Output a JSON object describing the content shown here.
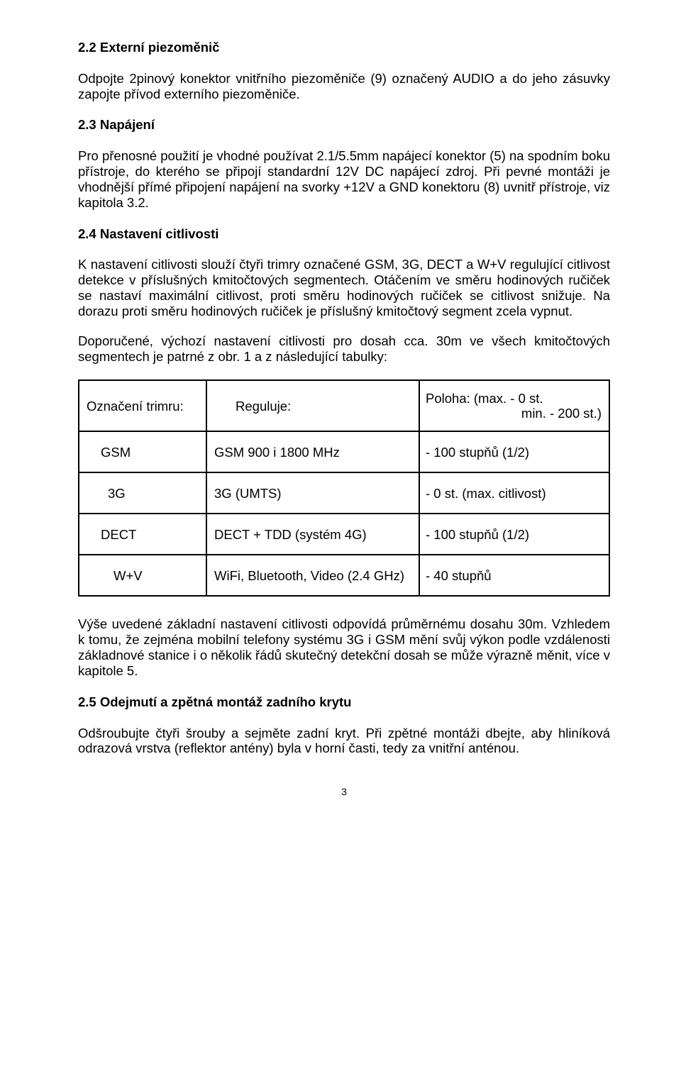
{
  "h22": "2.2 Externí piezoměnič",
  "p22": "Odpojte 2pinový konektor vnitřního piezoměniče (9) označený AUDIO a do jeho zásuvky zapojte přívod externího piezoměniče.",
  "h23": "2.3 Napájení",
  "p23": "Pro přenosné použití je vhodné používat 2.1/5.5mm napájecí konektor (5) na spodním boku přístroje, do kterého se připojí standardní 12V DC napájecí zdroj. Při pevné montáži je vhodnější přímé připojení napájení na svorky +12V a GND konektoru (8) uvnitř přístroje, viz kapitola 3.2.",
  "h24": "2.4 Nastavení citlivosti",
  "p24a": "K nastavení citlivosti slouží čtyři trimry označené GSM, 3G, DECT a W+V regulující citlivost detekce v příslušných kmitočtových segmentech.   Otáčením ve směru hodinových ručiček se nastaví maximální citlivost, proti směru hodinových ručiček se citlivost snižuje. Na dorazu proti směru hodinových ručiček je příslušný kmitočtový segment zcela vypnut.",
  "p24b": "Doporučené, výchozí nastavení citlivosti pro dosah cca. 30m ve všech kmitočtových segmentech je patrné z obr. 1  a z následující tabulky:",
  "table": {
    "hdr": {
      "c1": "Označení trimru:",
      "c2": "Reguluje:",
      "c3a": "Poloha:   (max. - 0 st.",
      "c3b": "min. - 200 st.)"
    },
    "r1": {
      "c1": "GSM",
      "c2": "GSM 900 i 1800 MHz",
      "c3": " - 100 stupňů    (1/2)"
    },
    "r2": {
      "c1": "3G",
      "c2": "3G   (UMTS)",
      "c3": " - 0 st. (max. citlivost)"
    },
    "r3": {
      "c1": "DECT",
      "c2": " DECT + TDD (systém 4G)",
      "c3": " - 100 stupňů    (1/2)"
    },
    "r4": {
      "c1": "W+V",
      "c2": "WiFi, Bluetooth, Video   (2.4 GHz)",
      "c3": " - 40 stupňů"
    }
  },
  "p_after": "Výše uvedené základní nastavení citlivosti odpovídá průměrnému dosahu 30m. Vzhledem k tomu, že zejména mobilní telefony systému 3G i GSM mění svůj výkon podle vzdálenosti základnové stanice i o několik řádů skutečný detekční dosah se může výrazně měnit, více v kapitole  5.",
  "h25": "2.5 Odejmutí a zpětná montáž zadního krytu",
  "p25": "Odšroubujte čtyři šrouby a sejměte zadní kryt. Při zpětné montáži dbejte, aby hliníková odrazová vrstva (reflektor antény) byla v horní časti, tedy za vnitřní anténou.",
  "pagenum": "3"
}
